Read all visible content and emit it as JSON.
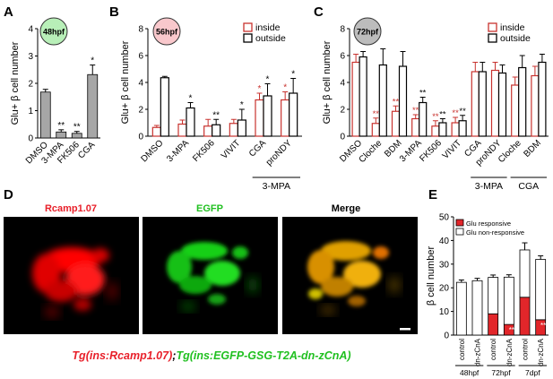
{
  "panels": {
    "A": {
      "letter": "A"
    },
    "B": {
      "letter": "B"
    },
    "C": {
      "letter": "C"
    },
    "D": {
      "letter": "D"
    },
    "E": {
      "letter": "E"
    }
  },
  "micrographs": {
    "labels": [
      "Rcamp1.07",
      "EGFP",
      "Merge"
    ],
    "label_colors": [
      "#e8202a",
      "#21c021",
      "#000000"
    ],
    "caption_part1": "Tg(ins:Rcamp1.07)",
    "caption_sep": ";",
    "caption_part2": "Tg(ins:EGFP-GSG-T2A-dn-zCnA)",
    "caption_color1": "#e8202a",
    "caption_color2": "#21c021"
  },
  "chart_data": [
    {
      "panel": "A",
      "type": "bar",
      "badge": "48hpf",
      "badge_color": "#b8efb8",
      "ylabel": "Glu+ β cell number",
      "ylim": [
        0,
        4
      ],
      "yticks": [
        "0",
        "1",
        "2",
        "3",
        "4"
      ],
      "categories": [
        "DMSO",
        "3-MPA",
        "FK506",
        "CGA"
      ],
      "values": [
        1.68,
        0.22,
        0.17,
        2.32
      ],
      "errors": [
        0.1,
        0.08,
        0.07,
        0.35
      ],
      "stars": [
        "",
        "**",
        "**",
        "*"
      ],
      "bar_color": "#a6a6a6"
    },
    {
      "panel": "B",
      "type": "bar",
      "badge": "56hpf",
      "badge_color": "#f9c8cc",
      "ylabel": "Glu+ β cell number",
      "ylim": [
        0,
        8
      ],
      "yticks": [
        "0",
        "2",
        "4",
        "6",
        "8"
      ],
      "legend": [
        "inside",
        "outside"
      ],
      "legend_colors": [
        "#c8322e",
        "#000000"
      ],
      "categories": [
        "DMSO",
        "3-MPA",
        "FK506",
        "VIVIT",
        "CGA",
        "proNDY"
      ],
      "series": [
        {
          "name": "inside",
          "values": [
            0.65,
            0.9,
            0.75,
            0.95,
            2.7,
            2.7
          ],
          "errors": [
            0.15,
            0.3,
            0.5,
            0.3,
            0.5,
            0.6
          ],
          "stars": [
            "",
            "",
            "",
            "",
            "*",
            "*"
          ]
        },
        {
          "name": "outside",
          "values": [
            4.35,
            2.1,
            0.85,
            1.2,
            3.0,
            3.2
          ],
          "errors": [
            0.1,
            0.4,
            0.4,
            0.8,
            0.9,
            1.1
          ],
          "stars": [
            "",
            "*",
            "**",
            "*",
            "*",
            "*"
          ]
        }
      ],
      "group_label": "3-MPA",
      "group_start": 4,
      "group_end": 5
    },
    {
      "panel": "C",
      "type": "bar",
      "badge": "72hpf",
      "badge_color": "#bcbcbc",
      "ylabel": "Glu+ β cell number",
      "ylim": [
        0,
        8
      ],
      "yticks": [
        "0",
        "2",
        "4",
        "6",
        "8"
      ],
      "legend": [
        "inside",
        "outside"
      ],
      "legend_colors": [
        "#c8322e",
        "#000000"
      ],
      "categories": [
        "DMSO",
        "Cloche",
        "BDM",
        "3-MPA",
        "FK506",
        "VIVIT",
        "CGA",
        "proNDY",
        "Cloche",
        "BDM"
      ],
      "series": [
        {
          "name": "inside",
          "values": [
            5.5,
            0.95,
            1.85,
            1.3,
            0.75,
            1.0,
            4.8,
            4.9,
            3.8,
            4.5
          ],
          "errors": [
            0.6,
            0.4,
            0.4,
            0.3,
            0.4,
            0.4,
            0.7,
            0.6,
            0.6,
            0.7
          ],
          "stars": [
            "",
            "**",
            "**",
            "**",
            "**",
            "**",
            "",
            "",
            "",
            ""
          ]
        },
        {
          "name": "outside",
          "values": [
            5.9,
            5.3,
            5.2,
            2.5,
            1.0,
            1.15,
            4.8,
            4.7,
            5.1,
            5.5
          ],
          "errors": [
            0.4,
            1.2,
            1.1,
            0.4,
            0.3,
            0.4,
            0.7,
            0.6,
            0.9,
            0.6
          ],
          "stars": [
            "",
            "",
            "",
            "**",
            "**",
            "**",
            "",
            "",
            "",
            ""
          ]
        }
      ],
      "groups": [
        {
          "label": "3-MPA",
          "start": 6,
          "end": 7
        },
        {
          "label": "CGA",
          "start": 8,
          "end": 9
        }
      ]
    },
    {
      "panel": "E",
      "type": "bar",
      "stacked": true,
      "ylabel": "β cell number",
      "ylim": [
        0,
        50
      ],
      "yticks": [
        "0",
        "10",
        "20",
        "30",
        "40",
        "50"
      ],
      "legend": [
        "Glu responsive",
        "Glu non-responsive"
      ],
      "legend_colors": [
        "#e2262a",
        "#ffffff"
      ],
      "categories": [
        "control",
        "dn-zCnA",
        "control",
        "dn-zCnA",
        "control",
        "dn-zCnA"
      ],
      "stage_labels": [
        "48hpf",
        "72hpf",
        "7dpf"
      ],
      "series": [
        {
          "name": "Glu responsive",
          "values": [
            0,
            0,
            9.0,
            4.5,
            16.0,
            6.5
          ],
          "errors": [
            0,
            0,
            1.0,
            0.8,
            1.2,
            0.8
          ]
        },
        {
          "name": "Glu non-responsive",
          "values": [
            22.3,
            23.0,
            15.4,
            20.0,
            20.0,
            25.5
          ],
          "errors": [
            1.0,
            1.0,
            1.0,
            1.0,
            3.0,
            1.5
          ]
        }
      ],
      "stars": [
        "",
        "",
        "",
        "**",
        "",
        "**"
      ]
    }
  ]
}
